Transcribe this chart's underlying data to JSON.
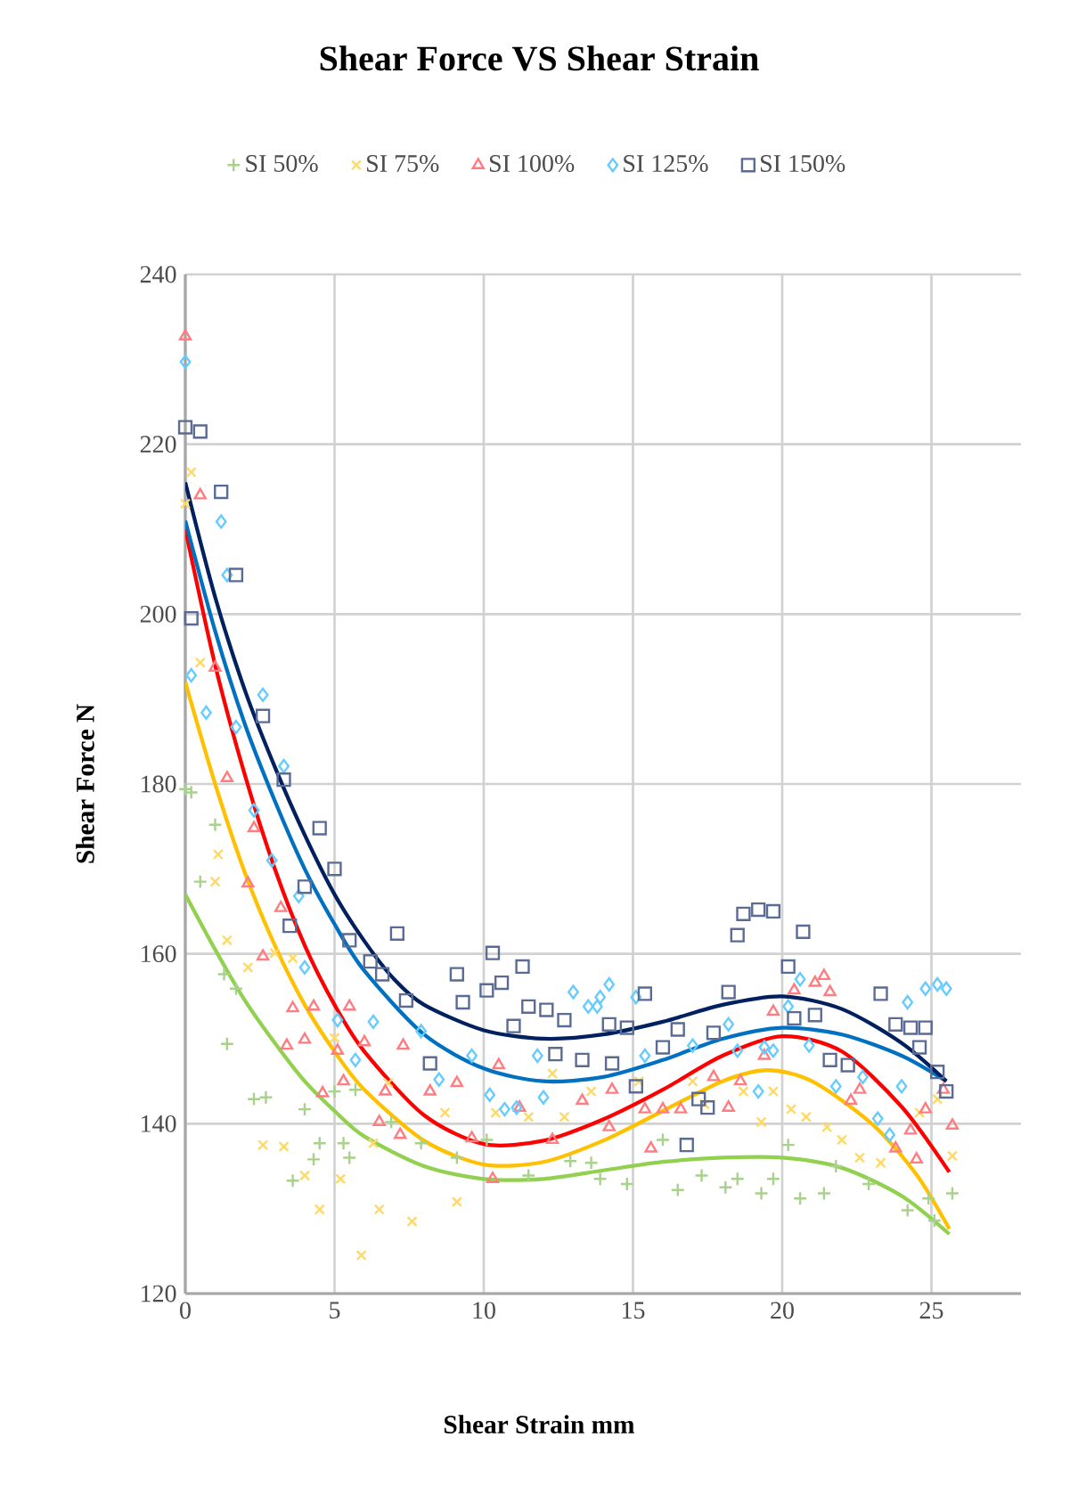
{
  "chart_data": {
    "type": "scatter",
    "title": "Shear Force VS Shear Strain",
    "xlabel": "Shear Strain mm",
    "ylabel": "Shear Force N",
    "xlim": [
      0,
      28
    ],
    "xticks": [
      0,
      5,
      10,
      15,
      20,
      25
    ],
    "ylim": [
      120,
      240
    ],
    "yticks": [
      120,
      140,
      160,
      180,
      200,
      220,
      240
    ],
    "grid": true,
    "legend": "top",
    "series": [
      {
        "name": "SI 50%",
        "color": "#a9d18e",
        "marker": "plus",
        "x": [
          0,
          0.2,
          1.0,
          0.5,
          1.3,
          1.7,
          1.4,
          2.3,
          2.7,
          4.0,
          4.5,
          4.3,
          3.6,
          5.3,
          5.5,
          5.0,
          5.7,
          6.9,
          7.9,
          9.1,
          10.1,
          11.5,
          12.9,
          13.9,
          13.6,
          14.8,
          16.0,
          16.5,
          17.3,
          18.1,
          18.5,
          19.3,
          19.7,
          20.2,
          20.6,
          21.4,
          21.8,
          22.9,
          24.2,
          24.9,
          25.7,
          25.1
        ],
        "values": [
          179.4,
          179,
          175.2,
          168.5,
          157.6,
          155.9,
          149.4,
          142.9,
          143.1,
          141.7,
          137.7,
          135.8,
          133.3,
          137.7,
          136,
          143.8,
          144,
          140.2,
          137.7,
          136,
          138.1,
          133.9,
          135.6,
          133.5,
          135.4,
          132.9,
          138.1,
          132.2,
          133.9,
          132.5,
          133.5,
          131.8,
          133.5,
          137.5,
          131.2,
          131.8,
          135,
          132.9,
          129.8,
          131.2,
          131.8,
          128.6
        ]
      },
      {
        "name": "SI 75%",
        "color": "#ffd966",
        "marker": "cross",
        "x": [
          0.2,
          0,
          0.5,
          1.1,
          1.0,
          1.4,
          2.1,
          3.0,
          3.6,
          2.6,
          3.3,
          4.0,
          4.5,
          5.2,
          5.9,
          6.5,
          7.6,
          9.1,
          6.3,
          6.8,
          5.0,
          8.7,
          10.4,
          11.5,
          12.7,
          12.3,
          13.6,
          15.2,
          17.0,
          17.4,
          18.7,
          19.3,
          19.7,
          20.3,
          20.8,
          21.5,
          22.0,
          22.6,
          23.3,
          24.6,
          25.2,
          25.7
        ],
        "values": [
          216.7,
          213,
          194.3,
          171.7,
          168.5,
          161.6,
          158.4,
          160.1,
          159.5,
          137.5,
          137.3,
          133.9,
          129.9,
          133.5,
          124.5,
          129.9,
          128.5,
          130.8,
          137.7,
          144.8,
          150.1,
          141.3,
          141.3,
          140.8,
          140.8,
          145.9,
          143.8,
          145,
          145,
          142.3,
          143.8,
          140.2,
          143.8,
          141.7,
          140.8,
          139.6,
          138.1,
          136,
          135.4,
          141.3,
          142.9,
          136.2
        ]
      },
      {
        "name": "SI 100%",
        "color": "#ff7c80",
        "marker": "triangle",
        "x": [
          0,
          0.5,
          1.0,
          1.4,
          2.3,
          2.1,
          3.2,
          2.6,
          3.6,
          4.3,
          5.5,
          3.4,
          4.0,
          5.1,
          6.0,
          5.3,
          4.6,
          7.3,
          6.7,
          6.5,
          7.2,
          8.2,
          9.1,
          9.6,
          10.3,
          10.5,
          11.2,
          13.3,
          12.3,
          14.3,
          14.2,
          15.4,
          15.6,
          16.0,
          16.6,
          17.7,
          18.2,
          18.6,
          19.4,
          19.7,
          20.4,
          21.1,
          21.4,
          21.6,
          22.3,
          22.6,
          23.8,
          24.3,
          24.5,
          24.8,
          25.4,
          25.7
        ],
        "values": [
          232.7,
          214,
          193.7,
          180.7,
          174.8,
          168.3,
          165.4,
          159.7,
          153.6,
          153.8,
          153.8,
          149.2,
          149.9,
          148.6,
          149.6,
          145,
          143.6,
          149.2,
          143.8,
          140.2,
          138.7,
          143.8,
          144.8,
          138.3,
          133.5,
          146.9,
          141.9,
          142.7,
          138.1,
          144,
          139.6,
          141.7,
          137.1,
          141.7,
          141.7,
          145.5,
          141.9,
          145,
          148,
          153.2,
          155.7,
          156.6,
          157.4,
          155.5,
          142.7,
          144,
          137.1,
          139.2,
          135.8,
          141.7,
          144,
          139.8
        ]
      },
      {
        "name": "SI 125%",
        "color": "#66ccff",
        "marker": "diamond",
        "x": [
          0,
          1.2,
          1.4,
          0.2,
          0.7,
          2.6,
          1.7,
          3.3,
          2.3,
          2.9,
          3.8,
          4.0,
          5.1,
          6.3,
          5.7,
          7.9,
          8.5,
          9.6,
          10.2,
          10.7,
          11.1,
          11.8,
          12.0,
          13.0,
          13.5,
          13.9,
          14.2,
          13.8,
          15.1,
          15.4,
          17.0,
          18.2,
          18.5,
          19.2,
          19.4,
          19.7,
          20.6,
          20.2,
          20.9,
          21.8,
          22.7,
          23.2,
          23.6,
          24.0,
          24.2,
          24.8,
          25.2,
          25.5
        ],
        "values": [
          229.7,
          210.9,
          204.6,
          192.8,
          188.4,
          190.5,
          186.7,
          182.1,
          176.9,
          171,
          166.8,
          158.4,
          152.2,
          152,
          147.5,
          150.9,
          145.2,
          148,
          143.4,
          141.7,
          141.9,
          148,
          143.1,
          155.5,
          153.8,
          154.9,
          156.4,
          153.8,
          154.9,
          148,
          149.2,
          151.7,
          148.6,
          143.8,
          149,
          148.6,
          157,
          153.8,
          149.2,
          144.4,
          145.5,
          140.6,
          138.7,
          144.4,
          154.3,
          155.9,
          156.4,
          155.9
        ]
      },
      {
        "name": "SI 150%",
        "color": "#5a6b95",
        "marker": "square",
        "x": [
          0,
          0.5,
          1.2,
          1.7,
          0.2,
          2.6,
          3.3,
          4.5,
          5.0,
          4.0,
          3.5,
          5.5,
          6.2,
          6.6,
          7.4,
          7.1,
          8.2,
          9.1,
          9.3,
          10.3,
          10.1,
          10.6,
          11.3,
          11.0,
          11.5,
          12.1,
          12.7,
          12.4,
          13.3,
          15.4,
          16.5,
          16.0,
          14.3,
          14.2,
          14.8,
          15.1,
          17.2,
          17.5,
          16.8,
          17.7,
          18.2,
          18.5,
          18.7,
          19.2,
          19.7,
          20.7,
          20.2,
          20.4,
          21.1,
          21.6,
          22.2,
          23.3,
          23.8,
          24.3,
          24.8,
          24.6,
          25.2,
          25.5
        ],
        "values": [
          222,
          221.5,
          214.4,
          204.6,
          199.5,
          188,
          180.5,
          174.8,
          170,
          167.9,
          163.3,
          161.6,
          159.1,
          157.6,
          154.5,
          162.4,
          147.1,
          157.6,
          154.3,
          160.1,
          155.7,
          156.6,
          158.5,
          151.5,
          153.8,
          153.4,
          152.2,
          148.2,
          147.5,
          155.3,
          151.1,
          149,
          147.1,
          151.7,
          151.3,
          144.4,
          142.9,
          141.9,
          137.5,
          150.7,
          155.5,
          162.2,
          164.7,
          165.2,
          165,
          162.6,
          158.5,
          152.4,
          152.8,
          147.5,
          146.9,
          155.3,
          151.7,
          151.3,
          151.3,
          149,
          146.1,
          143.8
        ]
      },
      {
        "type": "line",
        "color": "#92d050",
        "line_style": "solid",
        "x": [
          0,
          1,
          2,
          3,
          4,
          5,
          6,
          8,
          10,
          12,
          14,
          16,
          18,
          20,
          22,
          24,
          25.6
        ],
        "values": [
          167,
          160.5,
          154.5,
          149.5,
          145,
          141.5,
          138.5,
          135,
          133.5,
          133.5,
          134.5,
          135.5,
          136,
          136,
          134.8,
          131.5,
          127
        ]
      },
      {
        "type": "line",
        "color": "#ffc000",
        "line_style": "solid",
        "x": [
          0,
          1,
          2,
          3,
          4,
          5,
          6,
          8,
          10,
          12,
          14,
          16,
          18,
          19.5,
          21,
          23,
          24.5,
          25.6
        ],
        "values": [
          192,
          180,
          169.5,
          161,
          154,
          148.5,
          144,
          138,
          135.2,
          135.5,
          138,
          141.5,
          145,
          146.3,
          145,
          140,
          134,
          127.6
        ]
      },
      {
        "type": "line",
        "color": "#ff0000",
        "line_style": "solid",
        "x": [
          0,
          1,
          2,
          3,
          4,
          5,
          6,
          8,
          10,
          12,
          14,
          16,
          18,
          20,
          22,
          24,
          25.6
        ],
        "values": [
          210,
          194,
          181,
          170,
          161,
          154,
          148.5,
          141,
          137.6,
          138,
          140.5,
          144,
          148,
          150.3,
          148.5,
          142,
          134.3
        ]
      },
      {
        "type": "line",
        "color": "#0070c0",
        "line_style": "solid",
        "x": [
          0,
          1,
          2,
          3,
          4,
          5,
          6,
          8,
          10,
          12,
          14,
          16,
          18,
          20,
          22,
          24,
          25.5
        ],
        "values": [
          211,
          198,
          187,
          178,
          170,
          163.5,
          158,
          150.5,
          146.5,
          145,
          145.5,
          147.5,
          150,
          151.3,
          150.5,
          148,
          145
        ]
      },
      {
        "type": "line",
        "color": "#002060",
        "line_style": "solid",
        "x": [
          0,
          1,
          2,
          3,
          4,
          5,
          6,
          7,
          8,
          10,
          12,
          14,
          16,
          18,
          20,
          22,
          24,
          25.5
        ],
        "values": [
          215.5,
          202,
          191,
          182,
          174,
          167,
          161.5,
          157,
          154,
          151,
          150,
          150.5,
          152,
          154,
          155,
          153.5,
          149.5,
          145
        ]
      }
    ]
  }
}
